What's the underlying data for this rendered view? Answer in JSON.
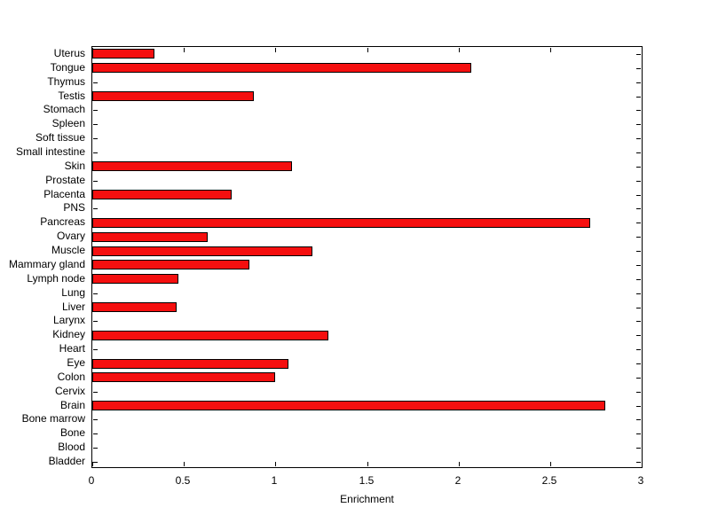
{
  "chart_data": {
    "type": "bar",
    "orientation": "horizontal",
    "title": "",
    "xlabel": "Enrichment",
    "ylabel": "",
    "xlim": [
      0,
      3
    ],
    "x_ticks": [
      "0",
      "0.5",
      "1",
      "1.5",
      "2",
      "2.5",
      "3"
    ],
    "x_tick_values": [
      0,
      0.5,
      1,
      1.5,
      2,
      2.5,
      3
    ],
    "grid": false,
    "legend": "none",
    "bar_color": "#f50f0f",
    "bar_edge_color": "#000000",
    "categories": [
      "Uterus",
      "Tongue",
      "Thymus",
      "Testis",
      "Stomach",
      "Spleen",
      "Soft tissue",
      "Small intestine",
      "Skin",
      "Prostate",
      "Placenta",
      "PNS",
      "Pancreas",
      "Ovary",
      "Muscle",
      "Mammary gland",
      "Lymph node",
      "Lung",
      "Liver",
      "Larynx",
      "Kidney",
      "Heart",
      "Eye",
      "Colon",
      "Cervix",
      "Brain",
      "Bone marrow",
      "Bone",
      "Blood",
      "Bladder"
    ],
    "values": [
      0.34,
      2.07,
      0,
      0.88,
      0,
      0,
      0,
      0,
      1.09,
      0,
      0.76,
      0,
      2.72,
      0.63,
      1.2,
      0.86,
      0.47,
      0,
      0.46,
      0,
      1.29,
      0,
      1.07,
      1.0,
      0,
      2.8,
      0,
      0,
      0,
      0
    ]
  }
}
